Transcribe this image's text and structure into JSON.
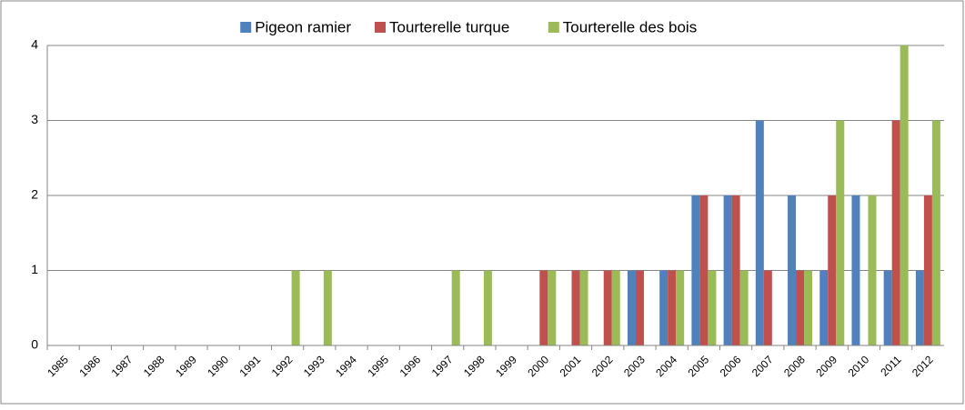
{
  "chart_data": {
    "type": "bar",
    "categories": [
      "1985",
      "1986",
      "1987",
      "1988",
      "1989",
      "1990",
      "1991",
      "1992",
      "1993",
      "1994",
      "1995",
      "1996",
      "1997",
      "1998",
      "1999",
      "2000",
      "2001",
      "2002",
      "2003",
      "2004",
      "2005",
      "2006",
      "2007",
      "2008",
      "2009",
      "2010",
      "2011",
      "2012"
    ],
    "series": [
      {
        "name": "Pigeon ramier",
        "color": "#4f81bd",
        "values": [
          0,
          0,
          0,
          0,
          0,
          0,
          0,
          0,
          0,
          0,
          0,
          0,
          0,
          0,
          0,
          0,
          0,
          0,
          1,
          1,
          2,
          2,
          3,
          2,
          1,
          2,
          1,
          1
        ]
      },
      {
        "name": "Tourterelle turque",
        "color": "#c0504d",
        "values": [
          0,
          0,
          0,
          0,
          0,
          0,
          0,
          0,
          0,
          0,
          0,
          0,
          0,
          0,
          0,
          1,
          1,
          1,
          1,
          1,
          2,
          2,
          1,
          1,
          2,
          0,
          3,
          2
        ]
      },
      {
        "name": "Tourterelle des bois",
        "color": "#9bbb59",
        "values": [
          0,
          0,
          0,
          0,
          0,
          0,
          0,
          1,
          1,
          0,
          0,
          0,
          1,
          1,
          0,
          1,
          1,
          1,
          0,
          1,
          1,
          1,
          0,
          1,
          3,
          2,
          4,
          3
        ]
      }
    ],
    "ylim": [
      0,
      4
    ],
    "yticks": [
      0,
      1,
      2,
      3,
      4
    ],
    "grid": true,
    "legend": "top"
  }
}
